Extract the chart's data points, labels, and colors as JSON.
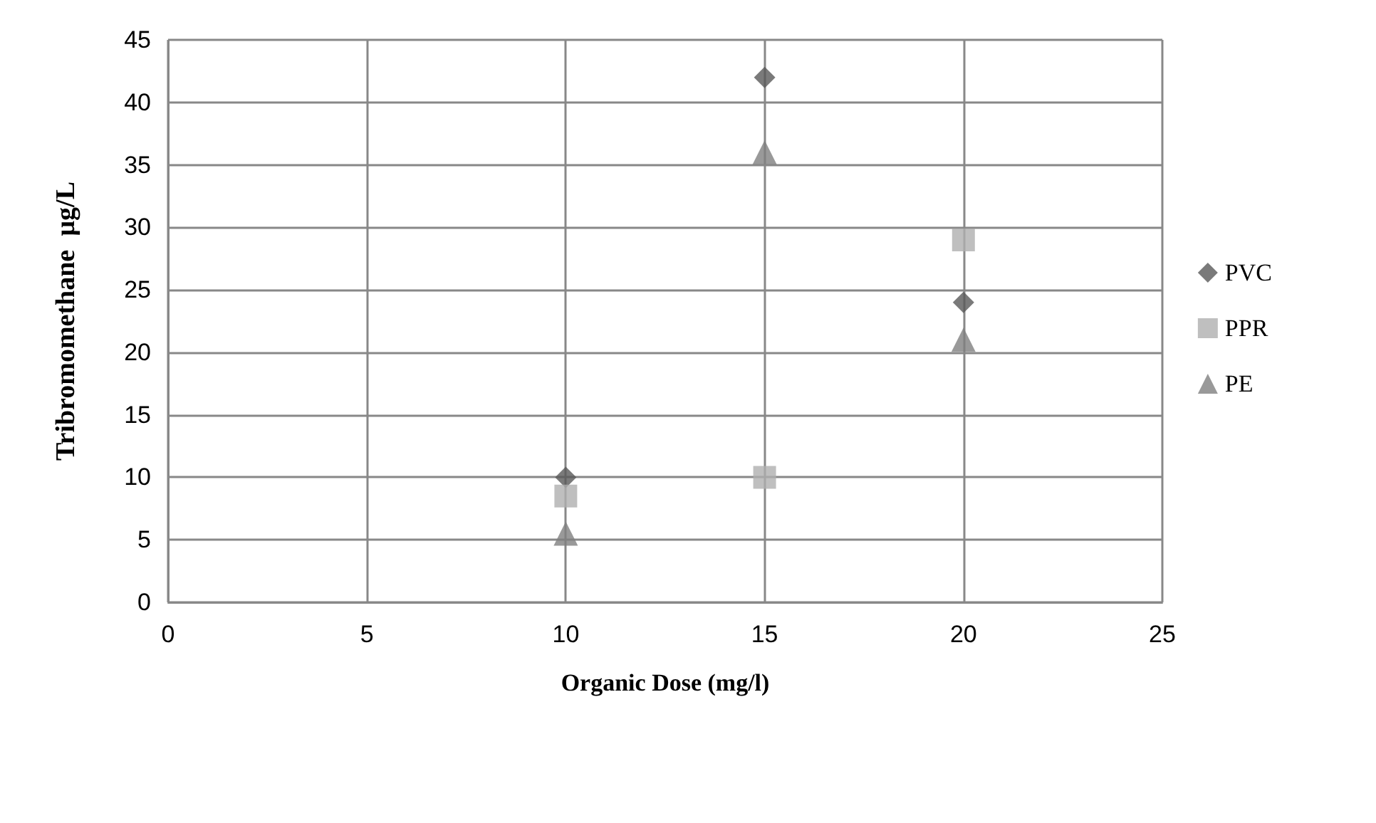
{
  "chart_data": {
    "type": "scatter",
    "xlabel": "Organic Dose (mg/l)",
    "ylabel": "Tribromomethane  µg/L",
    "x": [
      10,
      15,
      20
    ],
    "series": [
      {
        "name": "PVC",
        "color": "#595959",
        "marker": "diamond",
        "values": [
          10,
          42,
          24
        ]
      },
      {
        "name": "PPR",
        "color": "#afafaf",
        "marker": "square",
        "values": [
          8.5,
          10,
          29
        ]
      },
      {
        "name": "PE",
        "color": "#7f7f7f",
        "marker": "triangle",
        "values": [
          5.5,
          36,
          21
        ]
      }
    ],
    "xlim": [
      0,
      25
    ],
    "xticks": [
      0,
      5,
      10,
      15,
      20,
      25
    ],
    "ylim": [
      0,
      45
    ],
    "yticks": [
      0,
      5,
      10,
      15,
      20,
      25,
      30,
      35,
      40,
      45
    ],
    "grid": true,
    "legend": "right"
  }
}
